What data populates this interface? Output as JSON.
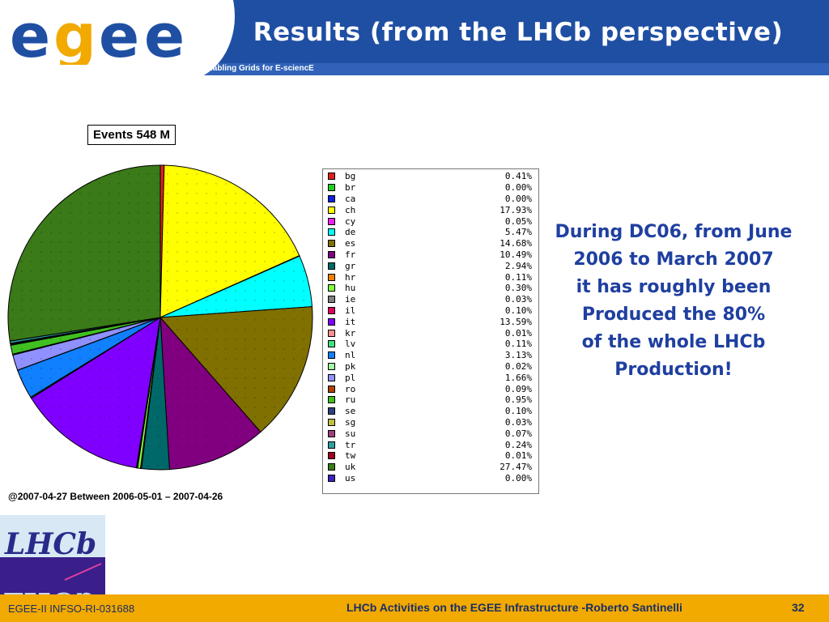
{
  "header": {
    "logo_text": "egee",
    "title": "Results (from the LHCb perspective)",
    "tagline": "Enabling Grids for E-sciencE"
  },
  "chart_data": {
    "type": "pie",
    "title": "Events 548 M",
    "footnote": "@2007-04-27  Between  2006-05-01 – 2007-04-26",
    "legend_position": "right",
    "slices": [
      {
        "label": "bg",
        "value": 0.41,
        "display": "0.41%",
        "color": "#e0201c"
      },
      {
        "label": "br",
        "value": 0.0,
        "display": "0.00%",
        "color": "#20d020"
      },
      {
        "label": "ca",
        "value": 0.0,
        "display": "0.00%",
        "color": "#1020e0"
      },
      {
        "label": "ch",
        "value": 17.93,
        "display": "17.93%",
        "color": "#ffff00"
      },
      {
        "label": "cy",
        "value": 0.05,
        "display": "0.05%",
        "color": "#f020f0"
      },
      {
        "label": "de",
        "value": 5.47,
        "display": "5.47%",
        "color": "#00ffff"
      },
      {
        "label": "es",
        "value": 14.68,
        "display": "14.68%",
        "color": "#807000"
      },
      {
        "label": "fr",
        "value": 10.49,
        "display": "10.49%",
        "color": "#800080"
      },
      {
        "label": "gr",
        "value": 2.94,
        "display": "2.94%",
        "color": "#006868"
      },
      {
        "label": "hr",
        "value": 0.11,
        "display": "0.11%",
        "color": "#f08000"
      },
      {
        "label": "hu",
        "value": 0.3,
        "display": "0.30%",
        "color": "#80ff40"
      },
      {
        "label": "ie",
        "value": 0.03,
        "display": "0.03%",
        "color": "#808080"
      },
      {
        "label": "il",
        "value": 0.1,
        "display": "0.10%",
        "color": "#e00060"
      },
      {
        "label": "it",
        "value": 13.59,
        "display": "13.59%",
        "color": "#8000ff"
      },
      {
        "label": "kr",
        "value": 0.01,
        "display": "0.01%",
        "color": "#ff9090"
      },
      {
        "label": "lv",
        "value": 0.11,
        "display": "0.11%",
        "color": "#40e080"
      },
      {
        "label": "nl",
        "value": 3.13,
        "display": "3.13%",
        "color": "#1080ff"
      },
      {
        "label": "pk",
        "value": 0.02,
        "display": "0.02%",
        "color": "#a0ffa0"
      },
      {
        "label": "pl",
        "value": 1.66,
        "display": "1.66%",
        "color": "#9090ff"
      },
      {
        "label": "ro",
        "value": 0.09,
        "display": "0.09%",
        "color": "#b04000"
      },
      {
        "label": "ru",
        "value": 0.95,
        "display": "0.95%",
        "color": "#40c020"
      },
      {
        "label": "se",
        "value": 0.1,
        "display": "0.10%",
        "color": "#304080"
      },
      {
        "label": "sg",
        "value": 0.03,
        "display": "0.03%",
        "color": "#c0c040"
      },
      {
        "label": "su",
        "value": 0.07,
        "display": "0.07%",
        "color": "#a04080"
      },
      {
        "label": "tr",
        "value": 0.24,
        "display": "0.24%",
        "color": "#30a0a0"
      },
      {
        "label": "tw",
        "value": 0.01,
        "display": "0.01%",
        "color": "#a00020"
      },
      {
        "label": "uk",
        "value": 27.47,
        "display": "27.47%",
        "color": "#3a7a18"
      },
      {
        "label": "us",
        "value": 0.0,
        "display": "0.00%",
        "color": "#4020c0"
      }
    ]
  },
  "note": {
    "lines": [
      "During DC06, from June",
      "2006 to March 2007",
      "it has roughly been",
      "Produced the 80%",
      "of the whole LHCb",
      "Production!"
    ]
  },
  "lhcb_logo_text": "LHCb",
  "footer": {
    "left": "EGEE-II INFSO-RI-031688",
    "center": "LHCb Activities on the EGEE Infrastructure -Roberto Santinelli",
    "page": "32"
  },
  "colors": {
    "header_blue": "#1f4fa3",
    "footer_orange": "#f2a900",
    "note_blue": "#1f3fa0"
  }
}
